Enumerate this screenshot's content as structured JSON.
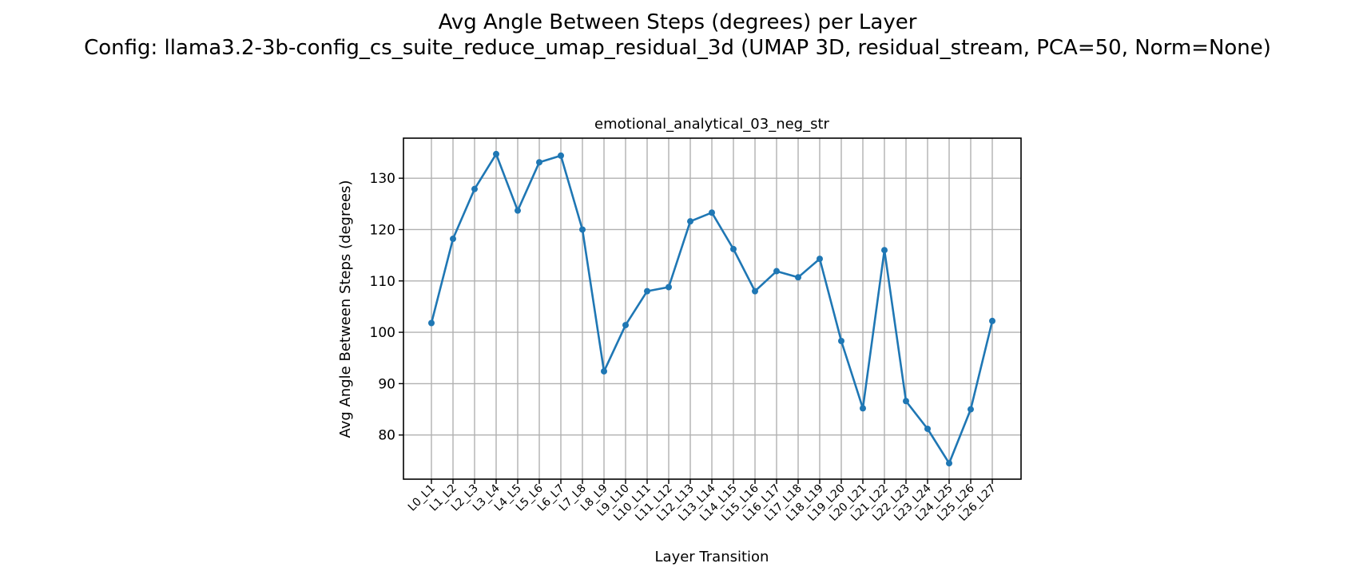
{
  "figure": {
    "title_line1": "Avg Angle Between Steps (degrees) per Layer",
    "title_line2": "Config: llama3.2-3b-config_cs_suite_reduce_umap_residual_3d (UMAP 3D, residual_stream, PCA=50, Norm=None)"
  },
  "chart_data": {
    "type": "line",
    "title": "emotional_analytical_03_neg_str",
    "xlabel": "Layer Transition",
    "ylabel": "Avg Angle Between Steps (degrees)",
    "categories": [
      "L0_L1",
      "L1_L2",
      "L2_L3",
      "L3_L4",
      "L4_L5",
      "L5_L6",
      "L6_L7",
      "L7_L8",
      "L8_L9",
      "L9_L10",
      "L10_L11",
      "L11_L12",
      "L12_L13",
      "L13_L14",
      "L14_L15",
      "L15_L16",
      "L16_L17",
      "L17_L18",
      "L18_L19",
      "L19_L20",
      "L20_L21",
      "L21_L22",
      "L22_L23",
      "L23_L24",
      "L24_L25",
      "L25_L26",
      "L26_L27"
    ],
    "values": [
      101.8,
      118.2,
      127.9,
      134.7,
      123.7,
      133.1,
      134.4,
      120.0,
      92.4,
      101.4,
      108.0,
      108.8,
      121.6,
      123.3,
      116.2,
      108.0,
      111.9,
      110.7,
      114.3,
      98.3,
      85.2,
      116.0,
      86.6,
      81.2,
      74.5,
      85.0,
      102.2
    ],
    "ylim": [
      71.4,
      137.8
    ],
    "yticks": [
      80,
      90,
      100,
      110,
      120,
      130
    ],
    "grid": true,
    "line_color": "#1f77b4",
    "marker": "circle"
  }
}
